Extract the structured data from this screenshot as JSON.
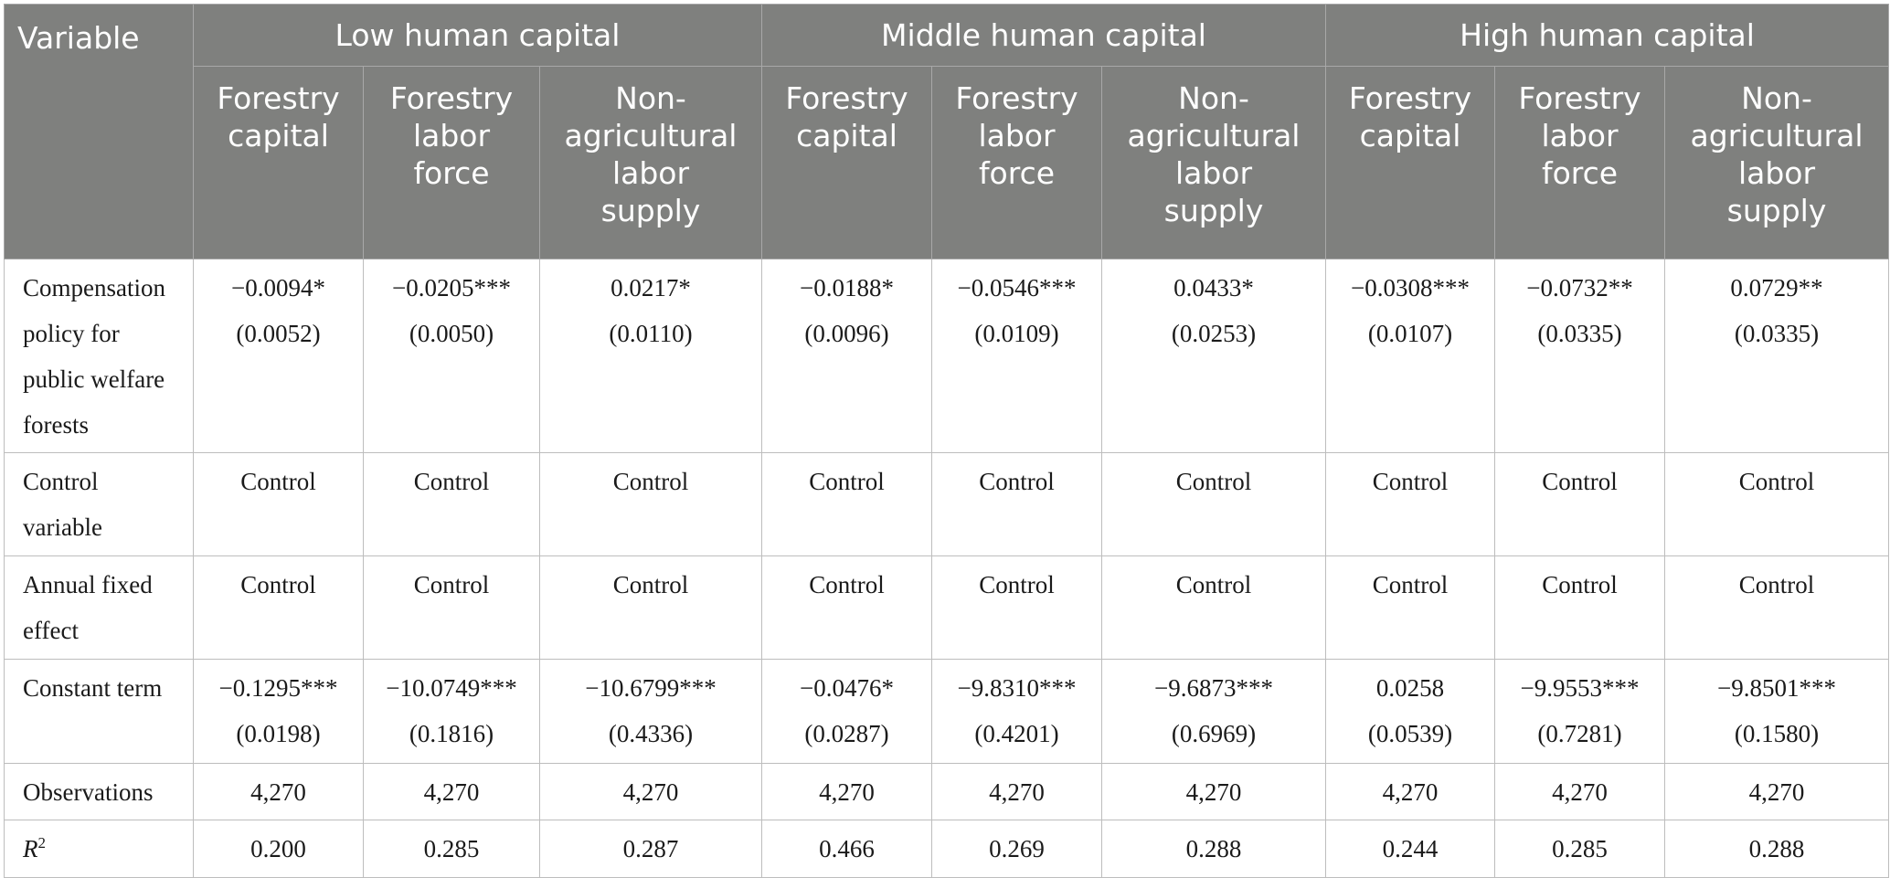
{
  "header": {
    "variable_label": "Variable",
    "groups": [
      "Low human capital",
      "Middle human capital",
      "High human capital"
    ],
    "subheaders": [
      [
        "Forestry",
        "capital"
      ],
      [
        "Forestry",
        "labor",
        "force"
      ],
      [
        "Non-",
        "agricultural",
        "labor",
        "supply"
      ]
    ]
  },
  "rows": [
    {
      "label": [
        "Compensation",
        "policy for",
        "public welfare",
        "forests"
      ],
      "cells": [
        {
          "coef": "−0.0094*",
          "se": "(0.0052)"
        },
        {
          "coef": "−0.0205***",
          "se": "(0.0050)"
        },
        {
          "coef": "0.0217*",
          "se": "(0.0110)"
        },
        {
          "coef": "−0.0188*",
          "se": "(0.0096)"
        },
        {
          "coef": "−0.0546***",
          "se": "(0.0109)"
        },
        {
          "coef": "0.0433*",
          "se": "(0.0253)"
        },
        {
          "coef": "−0.0308***",
          "se": "(0.0107)"
        },
        {
          "coef": "−0.0732**",
          "se": "(0.0335)"
        },
        {
          "coef": "0.0729**",
          "se": "(0.0335)"
        }
      ]
    },
    {
      "label": [
        "Control",
        "variable"
      ],
      "cells": [
        {
          "coef": "Control"
        },
        {
          "coef": "Control"
        },
        {
          "coef": "Control"
        },
        {
          "coef": "Control"
        },
        {
          "coef": "Control"
        },
        {
          "coef": "Control"
        },
        {
          "coef": "Control"
        },
        {
          "coef": "Control"
        },
        {
          "coef": "Control"
        }
      ]
    },
    {
      "label": [
        "Annual fixed",
        "effect"
      ],
      "cells": [
        {
          "coef": "Control"
        },
        {
          "coef": "Control"
        },
        {
          "coef": "Control"
        },
        {
          "coef": "Control"
        },
        {
          "coef": "Control"
        },
        {
          "coef": "Control"
        },
        {
          "coef": "Control"
        },
        {
          "coef": "Control"
        },
        {
          "coef": "Control"
        }
      ]
    },
    {
      "label": [
        "Constant term"
      ],
      "cells": [
        {
          "coef": "−0.1295***",
          "se": "(0.0198)"
        },
        {
          "coef": "−10.0749***",
          "se": "(0.1816)"
        },
        {
          "coef": "−10.6799***",
          "se": "(0.4336)"
        },
        {
          "coef": "−0.0476*",
          "se": "(0.0287)"
        },
        {
          "coef": "−9.8310***",
          "se": "(0.4201)"
        },
        {
          "coef": "−9.6873***",
          "se": "(0.6969)"
        },
        {
          "coef": "0.0258",
          "se": "(0.0539)"
        },
        {
          "coef": "−9.9553***",
          "se": "(0.7281)"
        },
        {
          "coef": "−9.8501***",
          "se": "(0.1580)"
        }
      ]
    },
    {
      "label": [
        "Observations"
      ],
      "cells": [
        {
          "coef": "4,270"
        },
        {
          "coef": "4,270"
        },
        {
          "coef": "4,270"
        },
        {
          "coef": "4,270"
        },
        {
          "coef": "4,270"
        },
        {
          "coef": "4,270"
        },
        {
          "coef": "4,270"
        },
        {
          "coef": "4,270"
        },
        {
          "coef": "4,270"
        }
      ]
    },
    {
      "label": [
        "R"
      ],
      "label_sup": "2",
      "italic_label": true,
      "cells": [
        {
          "coef": "0.200"
        },
        {
          "coef": "0.285"
        },
        {
          "coef": "0.287"
        },
        {
          "coef": "0.466"
        },
        {
          "coef": "0.269"
        },
        {
          "coef": "0.288"
        },
        {
          "coef": "0.244"
        },
        {
          "coef": "0.285"
        },
        {
          "coef": "0.288"
        }
      ]
    }
  ]
}
